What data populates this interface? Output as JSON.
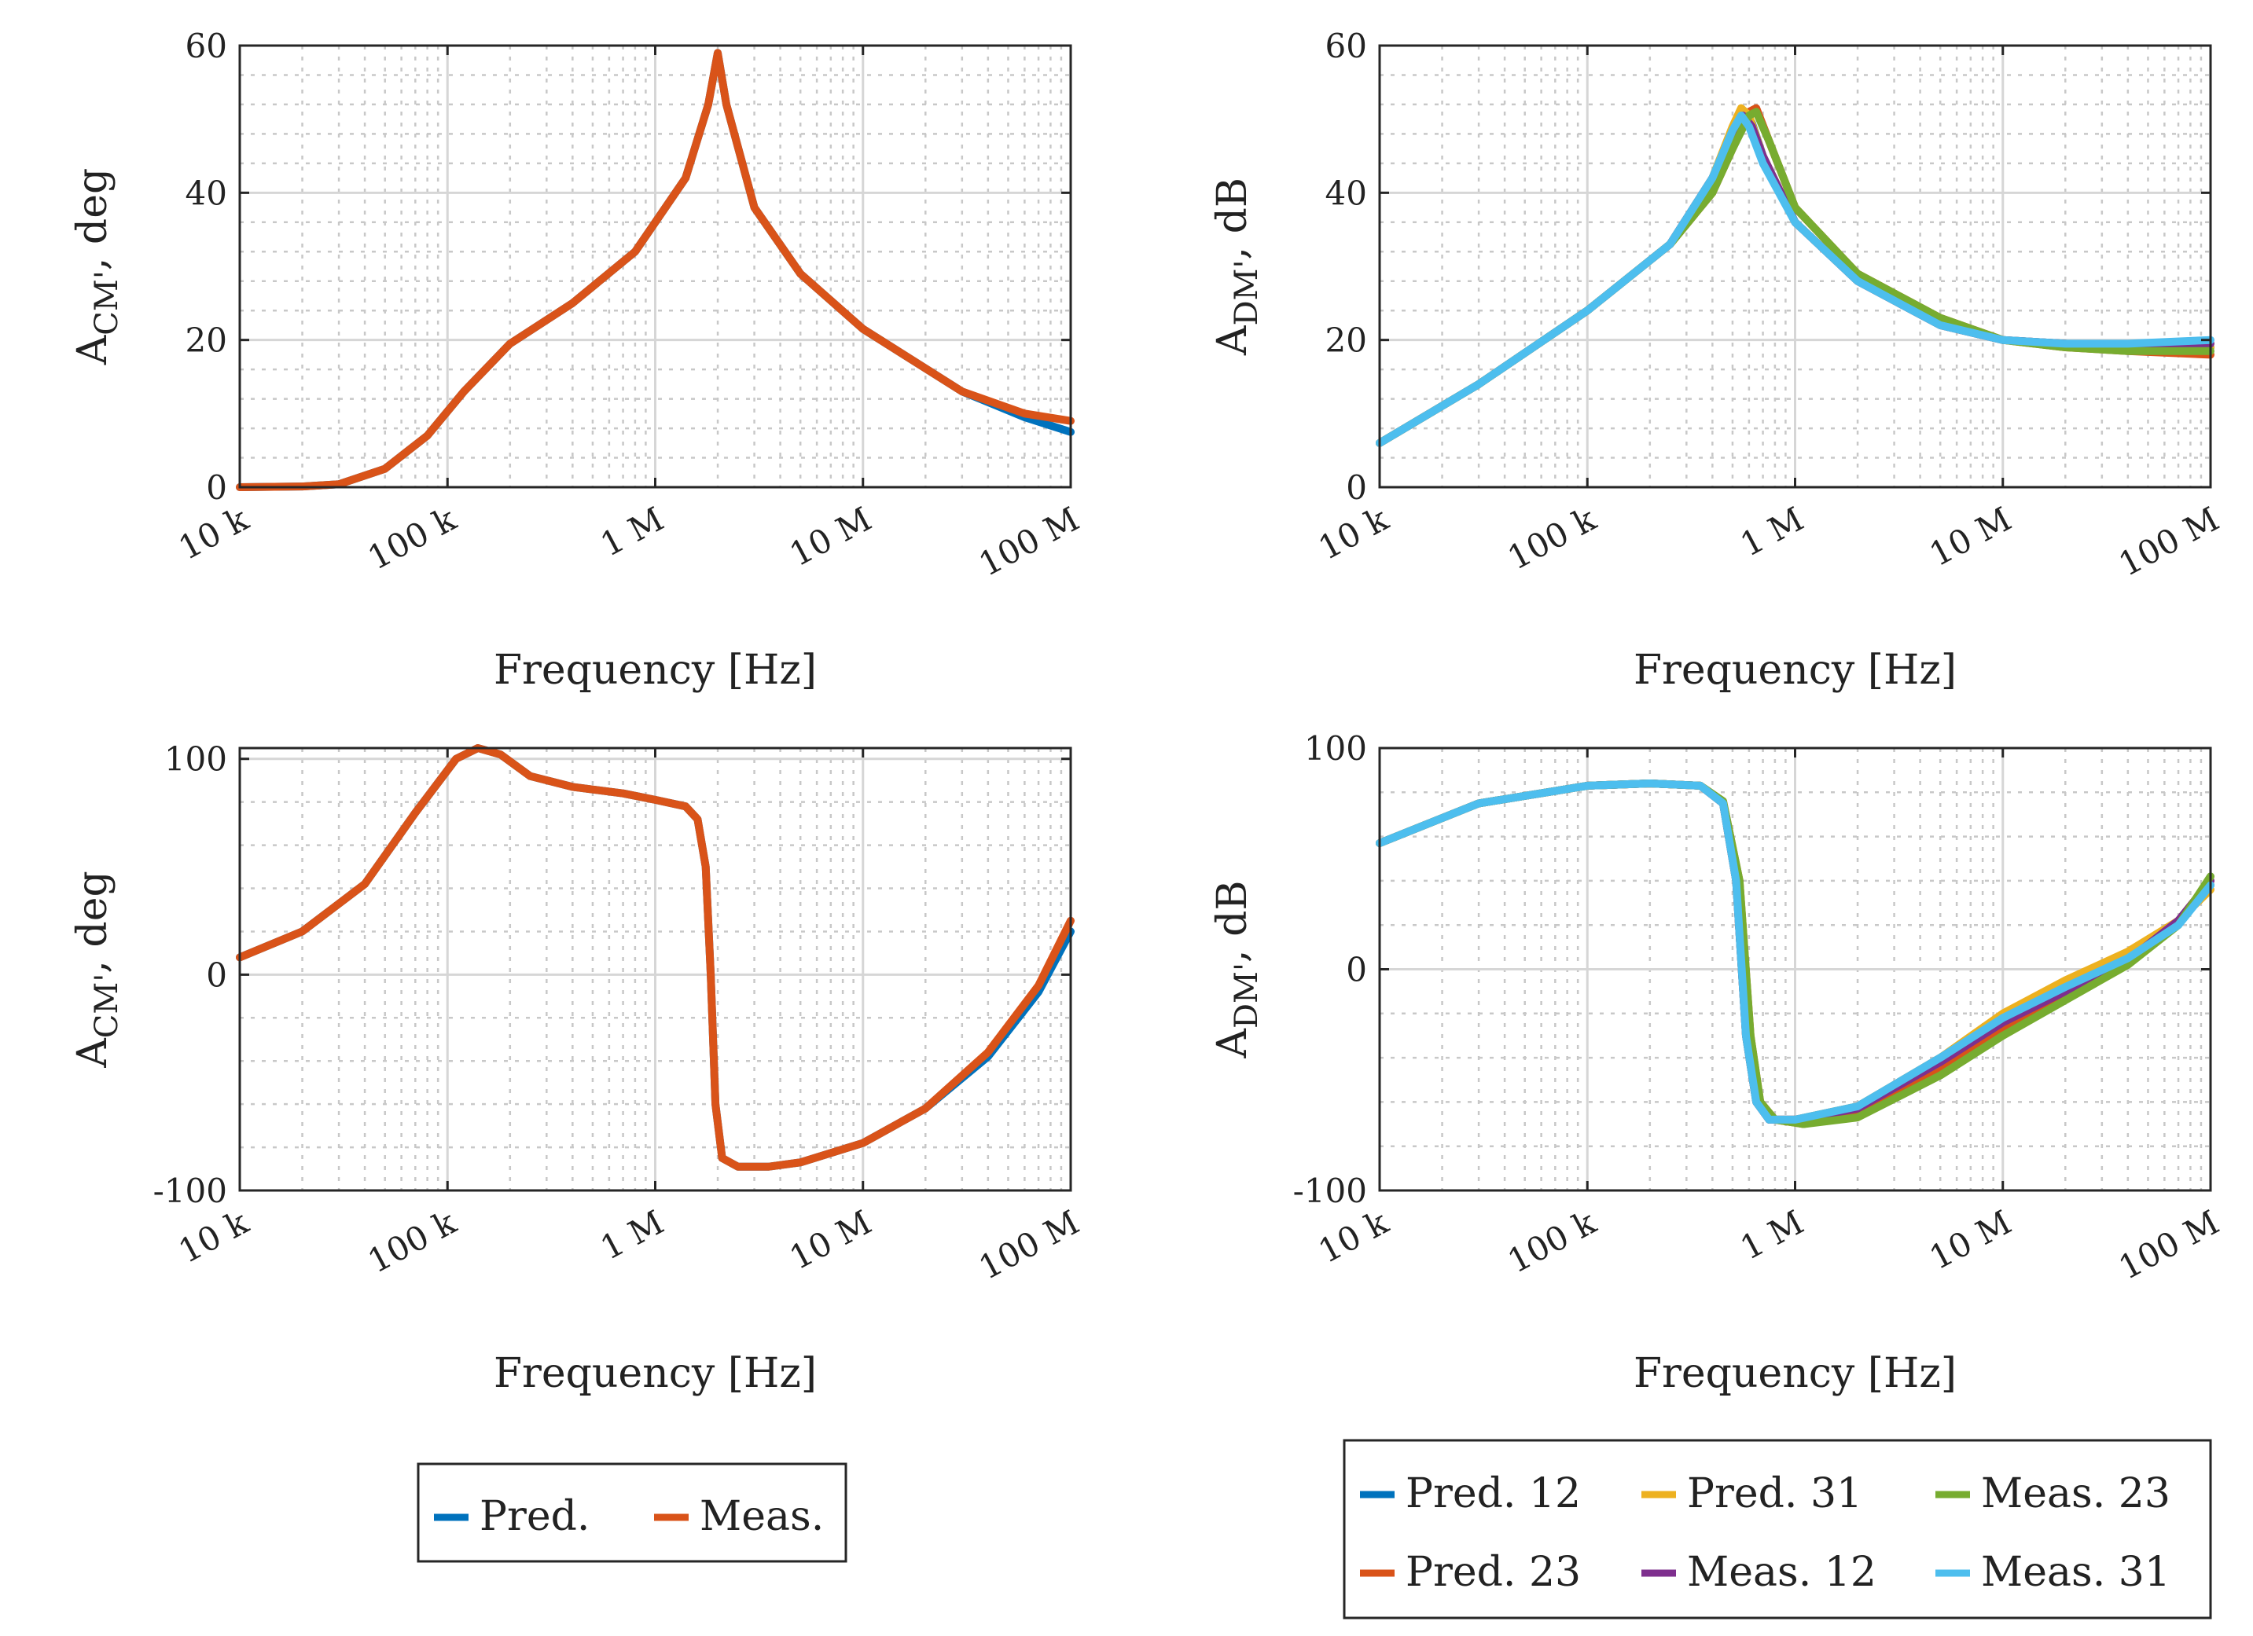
{
  "figure": {
    "colors": {
      "pred": "#0072BD",
      "meas": "#D95319",
      "pred12": "#0072BD",
      "pred23": "#D95319",
      "pred31": "#EDB120",
      "meas12": "#7E2F8E",
      "meas23": "#77AC30",
      "meas31": "#4DBEEE"
    }
  },
  "chart_data": [
    {
      "id": "cm_mag",
      "type": "line",
      "xlabel": "Frequency [Hz]",
      "ylabel": "A_CM', deg",
      "ylabel_main": "A",
      "ylabel_sub": "CM'",
      "ylabel_tail": ", deg",
      "xscale": "log",
      "xlim": [
        10000,
        100000000
      ],
      "ylim": [
        0,
        60
      ],
      "xticks": [
        10000,
        100000,
        1000000,
        10000000,
        100000000
      ],
      "xticklabels": [
        "10 k",
        "100 k",
        "1 M",
        "10 M",
        "100 M"
      ],
      "yticks": [
        0,
        20,
        40,
        60
      ],
      "yticklabels": [
        "0",
        "20",
        "40",
        "60"
      ],
      "grid": true,
      "series": [
        {
          "name": "Pred.",
          "color_key": "pred",
          "x": [
            10000,
            20000,
            30000,
            50000,
            80000,
            120000,
            200000,
            400000,
            800000,
            1400000,
            1800000,
            2000000,
            2200000,
            3000000,
            5000000,
            10000000,
            30000000,
            60000000,
            100000000
          ],
          "y": [
            0,
            0.1,
            0.4,
            2.5,
            7,
            13,
            19.5,
            25,
            32,
            42,
            52,
            59,
            52,
            38,
            29,
            21.5,
            13,
            9.5,
            7.5
          ]
        },
        {
          "name": "Meas.",
          "color_key": "meas",
          "x": [
            10000,
            20000,
            30000,
            50000,
            80000,
            120000,
            200000,
            400000,
            800000,
            1400000,
            1800000,
            2000000,
            2200000,
            3000000,
            5000000,
            10000000,
            30000000,
            60000000,
            100000000
          ],
          "y": [
            0,
            0.1,
            0.4,
            2.5,
            7,
            13,
            19.5,
            25,
            32,
            42,
            52,
            59,
            52,
            38,
            29,
            21.5,
            13,
            10,
            9
          ]
        }
      ]
    },
    {
      "id": "dm_mag",
      "type": "line",
      "xlabel": "Frequency [Hz]",
      "ylabel": "A_DM', dB",
      "ylabel_main": "A",
      "ylabel_sub": "DM'",
      "ylabel_tail": ", dB",
      "xscale": "log",
      "xlim": [
        10000,
        100000000
      ],
      "ylim": [
        0,
        60
      ],
      "xticks": [
        10000,
        100000,
        1000000,
        10000000,
        100000000
      ],
      "xticklabels": [
        "10 k",
        "100 k",
        "1 M",
        "10 M",
        "100 M"
      ],
      "yticks": [
        0,
        20,
        40,
        60
      ],
      "yticklabels": [
        "0",
        "20",
        "40",
        "60"
      ],
      "grid": true,
      "series": [
        {
          "name": "Pred. 12",
          "color_key": "pred12",
          "x": [
            10000,
            30000,
            100000,
            250000,
            400000,
            500000,
            560000,
            620000,
            700000,
            1000000,
            2000000,
            5000000,
            10000000,
            20000000,
            40000000,
            100000000
          ],
          "y": [
            6,
            14,
            24,
            33,
            42,
            48,
            51,
            49.5,
            45,
            36,
            28,
            22,
            20,
            19.5,
            19,
            19
          ]
        },
        {
          "name": "Pred. 23",
          "color_key": "pred23",
          "x": [
            10000,
            30000,
            100000,
            250000,
            400000,
            500000,
            600000,
            650000,
            750000,
            1000000,
            2000000,
            5000000,
            10000000,
            20000000,
            40000000,
            100000000
          ],
          "y": [
            6,
            14,
            24,
            33,
            40,
            46,
            51,
            51.5,
            47,
            38,
            29,
            23,
            20,
            19,
            18.5,
            18
          ]
        },
        {
          "name": "Pred. 31",
          "color_key": "pred31",
          "x": [
            10000,
            30000,
            100000,
            250000,
            400000,
            500000,
            550000,
            600000,
            700000,
            1000000,
            2000000,
            5000000,
            10000000,
            20000000,
            40000000,
            100000000
          ],
          "y": [
            6,
            14,
            24,
            33,
            42,
            49,
            51.5,
            50.5,
            45,
            36,
            28,
            22,
            20,
            19.5,
            19,
            19
          ]
        },
        {
          "name": "Meas. 12",
          "color_key": "meas12",
          "x": [
            10000,
            30000,
            100000,
            250000,
            400000,
            500000,
            560000,
            620000,
            700000,
            1000000,
            2000000,
            5000000,
            10000000,
            20000000,
            40000000,
            100000000
          ],
          "y": [
            6,
            14,
            24,
            33,
            42,
            48,
            50.5,
            49,
            45,
            36,
            28,
            22,
            20,
            19.5,
            19,
            19.5
          ]
        },
        {
          "name": "Meas. 23",
          "color_key": "meas23",
          "x": [
            10000,
            30000,
            100000,
            250000,
            400000,
            500000,
            600000,
            650000,
            750000,
            1000000,
            2000000,
            5000000,
            10000000,
            20000000,
            40000000,
            100000000
          ],
          "y": [
            6,
            14,
            24,
            33,
            40,
            46,
            50.5,
            51,
            47,
            38,
            29,
            23,
            20,
            19,
            18.5,
            18.5
          ]
        },
        {
          "name": "Meas. 31",
          "color_key": "meas31",
          "x": [
            10000,
            30000,
            100000,
            250000,
            400000,
            500000,
            550000,
            600000,
            700000,
            1000000,
            2000000,
            5000000,
            10000000,
            20000000,
            40000000,
            100000000
          ],
          "y": [
            6,
            14,
            24,
            33,
            42,
            48.5,
            50.5,
            49,
            44,
            36,
            28,
            22,
            20,
            19.5,
            19.5,
            20
          ]
        }
      ]
    },
    {
      "id": "cm_phase",
      "type": "line",
      "xlabel": "Frequency [Hz]",
      "ylabel": "A_CM', deg",
      "ylabel_main": "A",
      "ylabel_sub": "CM'",
      "ylabel_tail": ", deg",
      "xscale": "log",
      "xlim": [
        10000,
        100000000
      ],
      "ylim": [
        -100,
        105
      ],
      "xticks": [
        10000,
        100000,
        1000000,
        10000000,
        100000000
      ],
      "xticklabels": [
        "10 k",
        "100 k",
        "1 M",
        "10 M",
        "100 M"
      ],
      "yticks": [
        -100,
        0,
        100
      ],
      "yticklabels": [
        "-100",
        "0",
        "100"
      ],
      "grid": true,
      "series": [
        {
          "name": "Pred.",
          "color_key": "pred",
          "x": [
            10000,
            20000,
            40000,
            70000,
            110000,
            140000,
            180000,
            250000,
            400000,
            700000,
            1000000,
            1400000,
            1600000,
            1750000,
            1850000,
            1950000,
            2100000,
            2500000,
            3500000,
            5000000,
            10000000,
            20000000,
            40000000,
            70000000,
            100000000
          ],
          "y": [
            8,
            20,
            42,
            75,
            100,
            105,
            102,
            92,
            87,
            84,
            81,
            78,
            72,
            50,
            0,
            -60,
            -85,
            -89,
            -89,
            -87,
            -78,
            -62,
            -38,
            -8,
            20
          ]
        },
        {
          "name": "Meas.",
          "color_key": "meas",
          "x": [
            10000,
            20000,
            40000,
            70000,
            110000,
            140000,
            180000,
            250000,
            400000,
            700000,
            1000000,
            1400000,
            1600000,
            1750000,
            1850000,
            1950000,
            2100000,
            2500000,
            3500000,
            5000000,
            10000000,
            20000000,
            40000000,
            70000000,
            100000000
          ],
          "y": [
            8,
            20,
            42,
            75,
            100,
            105,
            102,
            92,
            87,
            84,
            81,
            78,
            72,
            50,
            0,
            -60,
            -85,
            -89,
            -89,
            -87,
            -78,
            -62,
            -36,
            -5,
            25
          ]
        }
      ]
    },
    {
      "id": "dm_phase",
      "type": "line",
      "xlabel": "Frequency [Hz]",
      "ylabel": "A_DM', dB",
      "ylabel_main": "A",
      "ylabel_sub": "DM'",
      "ylabel_tail": ", dB",
      "xscale": "log",
      "xlim": [
        10000,
        100000000
      ],
      "ylim": [
        -100,
        100
      ],
      "xticks": [
        10000,
        100000,
        1000000,
        10000000,
        100000000
      ],
      "xticklabels": [
        "10 k",
        "100 k",
        "1 M",
        "10 M",
        "100 M"
      ],
      "yticks": [
        -100,
        0,
        100
      ],
      "yticklabels": [
        "-100",
        "0",
        "100"
      ],
      "grid": true,
      "series": [
        {
          "name": "Pred. 12",
          "color_key": "pred12",
          "x": [
            10000,
            30000,
            100000,
            200000,
            350000,
            450000,
            520000,
            580000,
            650000,
            750000,
            1000000,
            2000000,
            5000000,
            10000000,
            20000000,
            40000000,
            70000000,
            100000000
          ],
          "y": [
            57,
            75,
            83,
            84,
            83,
            75,
            40,
            -30,
            -60,
            -68,
            -68,
            -62,
            -40,
            -22,
            -8,
            5,
            22,
            38
          ]
        },
        {
          "name": "Pred. 23",
          "color_key": "pred23",
          "x": [
            10000,
            30000,
            100000,
            200000,
            350000,
            450000,
            540000,
            610000,
            680000,
            800000,
            1100000,
            2000000,
            5000000,
            10000000,
            20000000,
            40000000,
            70000000,
            100000000
          ],
          "y": [
            57,
            75,
            83,
            84,
            83,
            76,
            40,
            -30,
            -60,
            -68,
            -70,
            -66,
            -46,
            -28,
            -12,
            4,
            22,
            40
          ]
        },
        {
          "name": "Pred. 31",
          "color_key": "pred31",
          "x": [
            10000,
            30000,
            100000,
            200000,
            350000,
            450000,
            520000,
            580000,
            650000,
            750000,
            1000000,
            2000000,
            5000000,
            10000000,
            20000000,
            40000000,
            70000000,
            100000000
          ],
          "y": [
            57,
            75,
            83,
            84,
            83,
            75,
            40,
            -30,
            -60,
            -68,
            -68,
            -62,
            -40,
            -20,
            -5,
            8,
            22,
            36
          ]
        },
        {
          "name": "Meas. 12",
          "color_key": "meas12",
          "x": [
            10000,
            30000,
            100000,
            200000,
            350000,
            450000,
            520000,
            580000,
            650000,
            750000,
            1000000,
            2000000,
            5000000,
            10000000,
            20000000,
            40000000,
            70000000,
            100000000
          ],
          "y": [
            57,
            75,
            83,
            84,
            83,
            75,
            40,
            -30,
            -60,
            -68,
            -68,
            -63,
            -42,
            -24,
            -10,
            4,
            22,
            40
          ]
        },
        {
          "name": "Meas. 23",
          "color_key": "meas23",
          "x": [
            10000,
            30000,
            100000,
            200000,
            350000,
            450000,
            540000,
            610000,
            680000,
            800000,
            1100000,
            2000000,
            5000000,
            10000000,
            20000000,
            40000000,
            70000000,
            100000000
          ],
          "y": [
            57,
            75,
            83,
            84,
            83,
            76,
            40,
            -30,
            -60,
            -68,
            -70,
            -67,
            -48,
            -30,
            -14,
            2,
            20,
            42
          ]
        },
        {
          "name": "Meas. 31",
          "color_key": "meas31",
          "x": [
            10000,
            30000,
            100000,
            200000,
            350000,
            450000,
            520000,
            580000,
            650000,
            750000,
            1000000,
            2000000,
            5000000,
            10000000,
            20000000,
            40000000,
            70000000,
            100000000
          ],
          "y": [
            57,
            75,
            83,
            84,
            83,
            75,
            40,
            -30,
            -60,
            -68,
            -68,
            -62,
            -40,
            -22,
            -8,
            5,
            20,
            38
          ]
        }
      ]
    }
  ],
  "legends": {
    "cm": {
      "items": [
        {
          "label": "Pred.",
          "color_key": "pred"
        },
        {
          "label": "Meas.",
          "color_key": "meas"
        }
      ]
    },
    "dm": {
      "items": [
        {
          "label": "Pred. 12",
          "color_key": "pred12"
        },
        {
          "label": "Pred. 31",
          "color_key": "pred31"
        },
        {
          "label": "Meas. 23",
          "color_key": "meas23"
        },
        {
          "label": "Pred. 23",
          "color_key": "pred23"
        },
        {
          "label": "Meas. 12",
          "color_key": "meas12"
        },
        {
          "label": "Meas. 31",
          "color_key": "meas31"
        }
      ]
    }
  }
}
